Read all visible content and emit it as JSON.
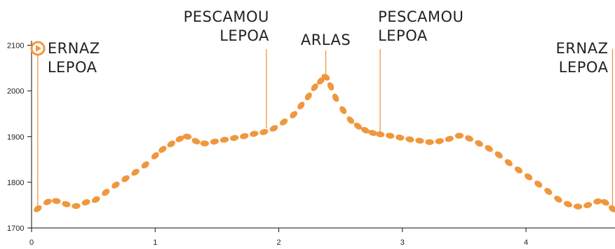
{
  "chart_data": {
    "type": "line",
    "title": "",
    "xlabel": "",
    "ylabel": "",
    "xlim": [
      0,
      4.72
    ],
    "ylim": [
      1700,
      2110
    ],
    "x_ticks": [
      0,
      1,
      2,
      3,
      4
    ],
    "y_ticks": [
      1700,
      1800,
      1900,
      2000,
      2100
    ],
    "grid": false,
    "line_color": "#F0973E",
    "line_style": "dotted",
    "series": [
      {
        "x": [
          0.05,
          0.13,
          0.2,
          0.28,
          0.36,
          0.44,
          0.52,
          0.6,
          0.68,
          0.76,
          0.84,
          0.92,
          1.0,
          1.06,
          1.13,
          1.2,
          1.26,
          1.33,
          1.4,
          1.48,
          1.56,
          1.64,
          1.72,
          1.8,
          1.88,
          1.96,
          2.04,
          2.12,
          2.18,
          2.24,
          2.29,
          2.34,
          2.38,
          2.42,
          2.46,
          2.52,
          2.58,
          2.64,
          2.7,
          2.76,
          2.82,
          2.9,
          2.98,
          3.06,
          3.14,
          3.22,
          3.3,
          3.38,
          3.46,
          3.54,
          3.62,
          3.7,
          3.78,
          3.86,
          3.94,
          4.02,
          4.1,
          4.18,
          4.26,
          4.34,
          4.42,
          4.5,
          4.58,
          4.64,
          4.7
        ],
        "y": [
          1742,
          1757,
          1759,
          1752,
          1748,
          1756,
          1762,
          1778,
          1794,
          1808,
          1822,
          1838,
          1858,
          1872,
          1884,
          1895,
          1900,
          1890,
          1885,
          1889,
          1893,
          1897,
          1901,
          1906,
          1910,
          1918,
          1932,
          1948,
          1968,
          1988,
          2008,
          2022,
          2030,
          2010,
          1985,
          1958,
          1936,
          1923,
          1914,
          1908,
          1905,
          1902,
          1898,
          1894,
          1891,
          1888,
          1890,
          1895,
          1902,
          1896,
          1885,
          1874,
          1860,
          1843,
          1827,
          1812,
          1796,
          1780,
          1763,
          1752,
          1747,
          1750,
          1758,
          1756,
          1742
        ]
      }
    ],
    "waypoints": [
      {
        "x": 0.05,
        "lines": [
          "ERNAZ",
          "LEPOA"
        ]
      },
      {
        "x": 1.9,
        "lines": [
          "PESCAMOU",
          "LEPOA"
        ]
      },
      {
        "x": 2.38,
        "lines": [
          "ARLAS"
        ]
      },
      {
        "x": 2.82,
        "lines": [
          "PESCAMOU",
          "LEPOA"
        ]
      },
      {
        "x": 4.7,
        "lines": [
          "ERNAZ",
          "LEPOA"
        ]
      }
    ],
    "start_marker_color": "#F0973E"
  }
}
